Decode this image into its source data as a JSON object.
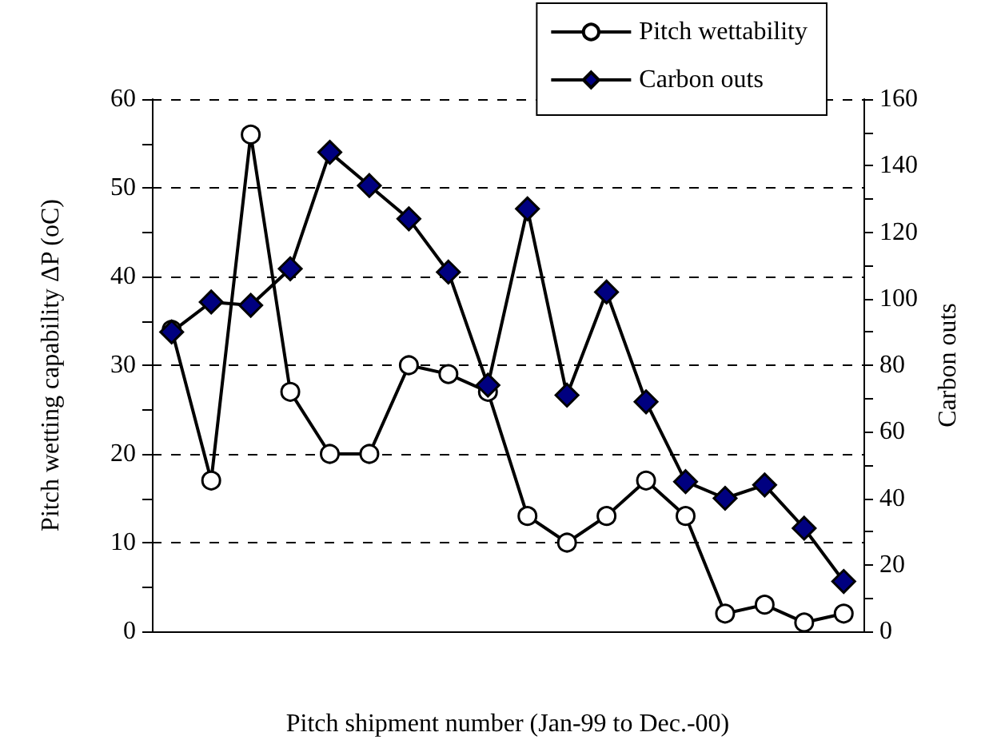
{
  "chart_data": {
    "type": "line",
    "xlabel": "Pitch shipment number (Jan-99 to Dec.-00)",
    "ylabel": "Pitch wetting capability ΔP (oC)",
    "y2label": "Carbon outs",
    "categories": [
      null,
      null,
      null,
      null,
      null,
      null,
      null,
      null,
      null,
      null,
      null,
      null,
      null,
      null,
      null,
      null,
      null,
      null
    ],
    "series": [
      {
        "name": "Pitch wettability",
        "color": "#000000",
        "marker": "circle",
        "values": [
          34,
          17,
          56,
          27,
          20,
          20,
          30,
          29,
          27,
          13,
          10,
          13,
          17,
          13,
          2,
          3,
          1,
          2
        ]
      },
      {
        "name": "Carbon outs",
        "color": "#000080",
        "marker": "diamond",
        "axis": "y2",
        "values": [
          90,
          99,
          98,
          109,
          144,
          134,
          124,
          108,
          74,
          127,
          71,
          102,
          69,
          45,
          40,
          44,
          31,
          15
        ]
      }
    ],
    "ylim": [
      0,
      60
    ],
    "yticks": [
      0,
      {
        "value": 5,
        "label": null
      },
      10,
      {
        "value": 15,
        "label": null
      },
      20,
      {
        "value": 25,
        "label": null
      },
      30,
      {
        "value": 35,
        "label": null
      },
      40,
      {
        "value": 45,
        "label": null
      },
      50,
      {
        "value": 55,
        "label": null
      },
      60
    ],
    "y2lim": [
      0,
      160
    ],
    "y2ticks": [
      0,
      {
        "value": 10,
        "label": null
      },
      20,
      {
        "value": 30,
        "label": null
      },
      40,
      {
        "value": 50,
        "label": null
      },
      60,
      {
        "value": 70,
        "label": null
      },
      80,
      {
        "value": 90,
        "label": null
      },
      100,
      {
        "value": 110,
        "label": null
      },
      120,
      {
        "value": 130,
        "label": null
      },
      140,
      {
        "value": 150,
        "label": null
      },
      160
    ],
    "grid": "y",
    "legend": "top right",
    "line_style": "solid"
  }
}
